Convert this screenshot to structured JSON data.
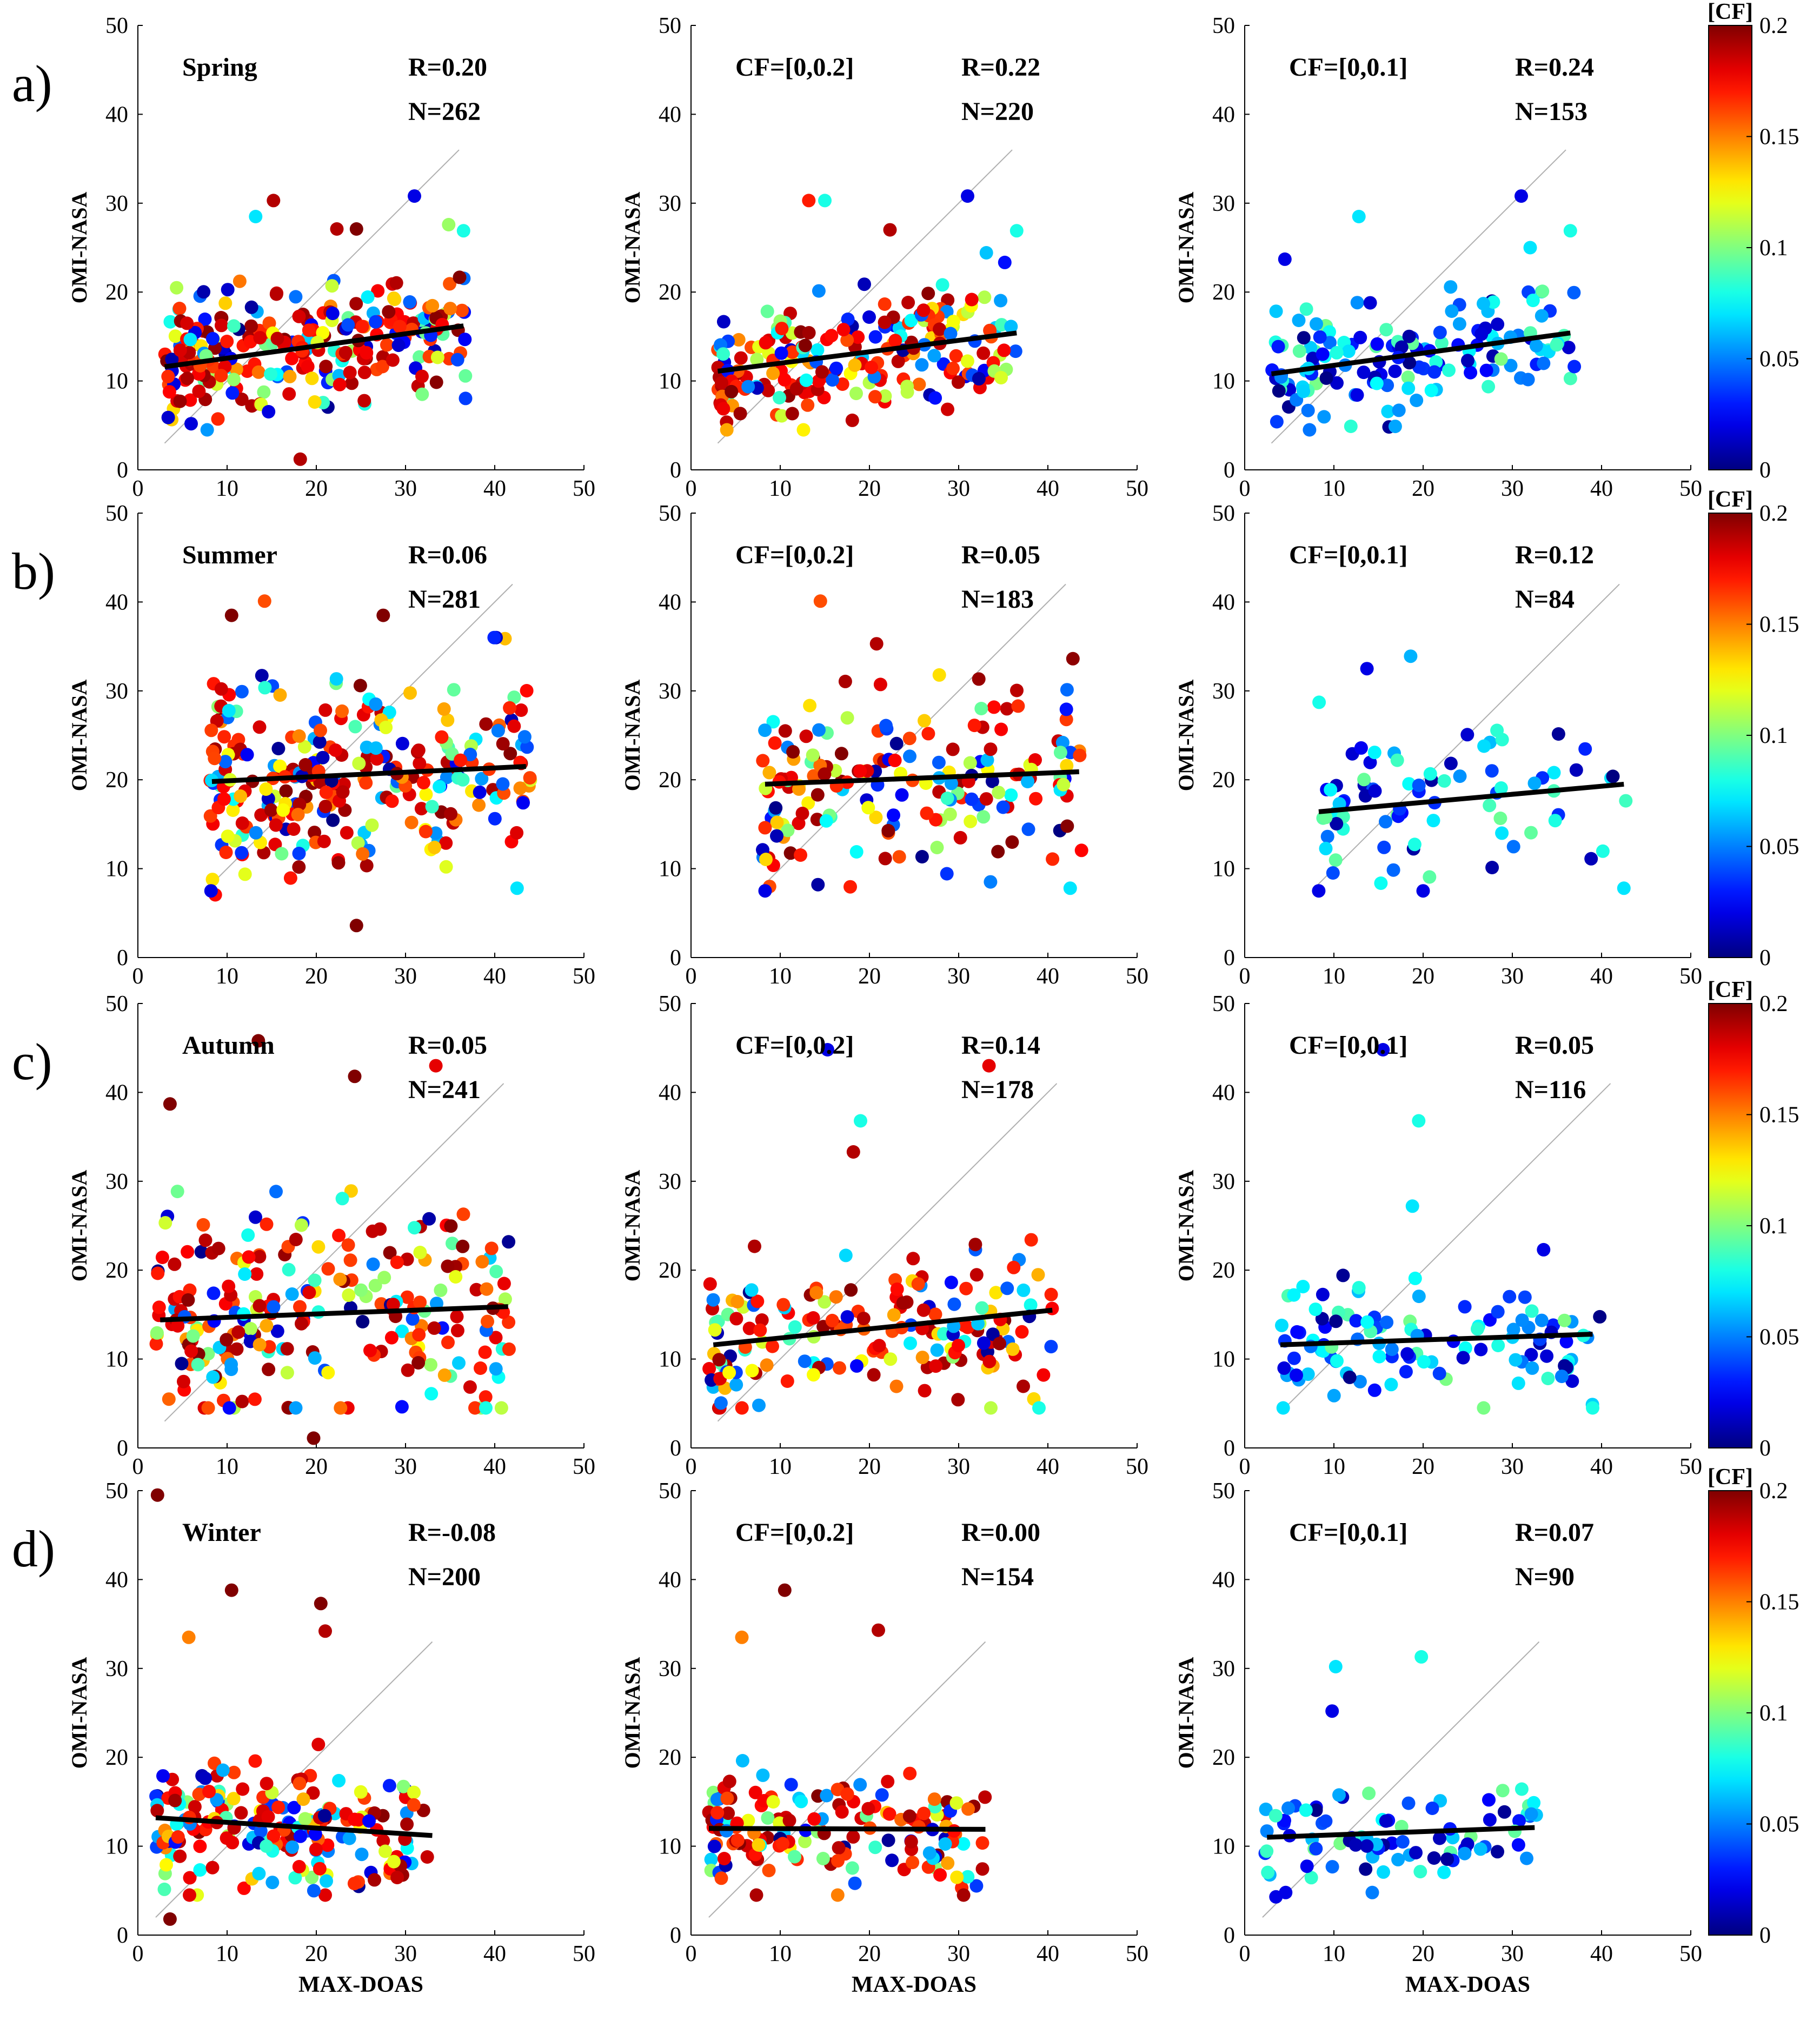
{
  "figure": {
    "x_axis_label": "MAX-DOAS",
    "y_axis_label": "OMI-NASA",
    "colorbar": {
      "label": "[CF]",
      "ticks": [
        "0",
        "0.05",
        "0.1",
        "0.15",
        "0.2"
      ],
      "tick_values": [
        0,
        0.05,
        0.1,
        0.15,
        0.2
      ],
      "range": [
        0,
        0.2
      ],
      "colormap": "jet"
    },
    "line_color": "#000000",
    "one_to_one_color": "#b0b0b0"
  },
  "chart_data": [
    {
      "type": "scatter",
      "row": 0,
      "col": 0,
      "row_label": "a)",
      "title": "Spring",
      "r_text": "R=0.20",
      "n_text": "N=262",
      "xlim": [
        0,
        50
      ],
      "ylim": [
        0,
        50
      ],
      "xticks": [
        "0",
        "10",
        "20",
        "30",
        "40",
        "50"
      ],
      "yticks": [
        "0",
        "10",
        "20",
        "30",
        "40",
        "50"
      ],
      "fit": {
        "x0": 3,
        "y0": 11.6,
        "x1": 36.5,
        "y1": 16.2
      },
      "one_to_one": [
        3,
        36
      ],
      "xlabel": "",
      "ylabel": "OMI-NASA",
      "seed": 11,
      "cf_max": 0.2,
      "n_points": 262,
      "dist": {
        "x": [
          3,
          37
        ],
        "ymean": 12,
        "yspread": 3.6,
        "outliers": [
          [
            15.2,
            30.3,
            0.19
          ],
          [
            13.2,
            28.5,
            0.07
          ],
          [
            18.2,
            1.2,
            0.19
          ],
          [
            31,
            30.8,
            0.02
          ],
          [
            36.5,
            26.9,
            0.08
          ],
          [
            22.3,
            27.1,
            0.19
          ],
          [
            24.5,
            27.1,
            0.2
          ]
        ]
      }
    },
    {
      "type": "scatter",
      "row": 0,
      "col": 1,
      "row_label": "",
      "title": "CF=[0,0.2]",
      "r_text": "R=0.22",
      "n_text": "N=220",
      "xlim": [
        0,
        50
      ],
      "ylim": [
        0,
        50
      ],
      "xticks": [
        "0",
        "10",
        "20",
        "30",
        "40",
        "50"
      ],
      "yticks": [
        "0",
        "10",
        "20",
        "30",
        "40",
        "50"
      ],
      "fit": {
        "x0": 3,
        "y0": 11.1,
        "x1": 36.5,
        "y1": 15.4
      },
      "one_to_one": [
        3,
        36
      ],
      "xlabel": "",
      "ylabel": "OMI-NASA",
      "seed": 12,
      "cf_max": 0.2,
      "n_points": 220,
      "dist": {
        "x": [
          3,
          37
        ],
        "ymean": 12,
        "yspread": 3.4,
        "outliers": [
          [
            13.2,
            30.3,
            0.17
          ],
          [
            15,
            30.3,
            0.08
          ],
          [
            31,
            30.8,
            0.02
          ],
          [
            36.5,
            26.9,
            0.08
          ],
          [
            22.3,
            27,
            0.19
          ]
        ]
      }
    },
    {
      "type": "scatter",
      "row": 0,
      "col": 2,
      "row_label": "",
      "title": "CF=[0,0.1]",
      "r_text": "R=0.24",
      "n_text": "N=153",
      "xlim": [
        0,
        50
      ],
      "ylim": [
        0,
        50
      ],
      "xticks": [
        "0",
        "10",
        "20",
        "30",
        "40",
        "50"
      ],
      "yticks": [
        "0",
        "10",
        "20",
        "30",
        "40",
        "50"
      ],
      "fit": {
        "x0": 3,
        "y0": 10.8,
        "x1": 36.5,
        "y1": 15.4
      },
      "one_to_one": [
        3,
        36
      ],
      "xlabel": "",
      "ylabel": "OMI-NASA",
      "seed": 13,
      "cf_max": 0.1,
      "n_points": 153,
      "dist": {
        "x": [
          3,
          37
        ],
        "ymean": 11.5,
        "yspread": 3.3,
        "outliers": [
          [
            12.8,
            28.5,
            0.07
          ],
          [
            31,
            30.8,
            0.02
          ],
          [
            36.5,
            26.9,
            0.08
          ],
          [
            32,
            25,
            0.07
          ],
          [
            4.5,
            23.7,
            0.02
          ]
        ]
      }
    },
    {
      "type": "scatter",
      "row": 1,
      "col": 0,
      "row_label": "b)",
      "title": "Summer",
      "r_text": "R=0.06",
      "n_text": "N=281",
      "xlim": [
        0,
        50
      ],
      "ylim": [
        0,
        50
      ],
      "xticks": [
        "0",
        "10",
        "20",
        "30",
        "40",
        "50"
      ],
      "yticks": [
        "0",
        "10",
        "20",
        "30",
        "40",
        "50"
      ],
      "fit": {
        "x0": 8.3,
        "y0": 19.8,
        "x1": 43.5,
        "y1": 21.5
      },
      "one_to_one": [
        8,
        42
      ],
      "xlabel": "",
      "ylabel": "OMI-NASA",
      "seed": 21,
      "cf_max": 0.2,
      "n_points": 281,
      "dist": {
        "x": [
          8,
          44
        ],
        "ymean": 21,
        "yspread": 5.5,
        "outliers": [
          [
            14.2,
            40.1,
            0.16
          ],
          [
            8.2,
            7.5,
            0.02
          ],
          [
            24.5,
            3.6,
            0.2
          ],
          [
            42.5,
            7.8,
            0.07
          ],
          [
            10.5,
            38.5,
            0.2
          ],
          [
            27.5,
            38.5,
            0.2
          ]
        ]
      }
    },
    {
      "type": "scatter",
      "row": 1,
      "col": 1,
      "row_label": "",
      "title": "CF=[0,0.2]",
      "r_text": "R=0.05",
      "n_text": "N=183",
      "xlim": [
        0,
        50
      ],
      "ylim": [
        0,
        50
      ],
      "xticks": [
        "0",
        "10",
        "20",
        "30",
        "40",
        "50"
      ],
      "yticks": [
        "0",
        "10",
        "20",
        "30",
        "40",
        "50"
      ],
      "fit": {
        "x0": 8.3,
        "y0": 19.5,
        "x1": 43.5,
        "y1": 20.9
      },
      "one_to_one": [
        8,
        42
      ],
      "xlabel": "",
      "ylabel": "OMI-NASA",
      "seed": 22,
      "cf_max": 0.2,
      "n_points": 183,
      "dist": {
        "x": [
          8,
          44
        ],
        "ymean": 20,
        "yspread": 5.2,
        "outliers": [
          [
            14.5,
            40.1,
            0.16
          ],
          [
            8.3,
            7.5,
            0.02
          ],
          [
            42.5,
            7.8,
            0.07
          ],
          [
            20.8,
            35.3,
            0.19
          ]
        ]
      }
    },
    {
      "type": "scatter",
      "row": 1,
      "col": 2,
      "row_label": "",
      "title": "CF=[0,0.1]",
      "r_text": "R=0.12",
      "n_text": "N=84",
      "xlim": [
        0,
        50
      ],
      "ylim": [
        0,
        50
      ],
      "xticks": [
        "0",
        "10",
        "20",
        "30",
        "40",
        "50"
      ],
      "yticks": [
        "0",
        "10",
        "20",
        "30",
        "40",
        "50"
      ],
      "fit": {
        "x0": 8.3,
        "y0": 16.4,
        "x1": 42.5,
        "y1": 19.5
      },
      "one_to_one": [
        8,
        42
      ],
      "xlabel": "",
      "ylabel": "OMI-NASA",
      "seed": 23,
      "cf_max": 0.1,
      "n_points": 84,
      "dist": {
        "x": [
          8,
          43
        ],
        "ymean": 18,
        "yspread": 4.8,
        "outliers": [
          [
            13.7,
            32.5,
            0.02
          ],
          [
            18.6,
            33.9,
            0.06
          ],
          [
            8.3,
            7.5,
            0.02
          ],
          [
            42.5,
            7.8,
            0.07
          ],
          [
            20,
            7.5,
            0.02
          ]
        ]
      }
    },
    {
      "type": "scatter",
      "row": 2,
      "col": 0,
      "row_label": "c)",
      "title": "Autumn",
      "r_text": "R=0.05",
      "n_text": "N=241",
      "xlim": [
        0,
        50
      ],
      "ylim": [
        0,
        50
      ],
      "xticks": [
        "0",
        "10",
        "20",
        "30",
        "40",
        "50"
      ],
      "yticks": [
        "0",
        "10",
        "20",
        "30",
        "40",
        "50"
      ],
      "fit": {
        "x0": 2.5,
        "y0": 14.4,
        "x1": 41.5,
        "y1": 15.9
      },
      "one_to_one": [
        3,
        41
      ],
      "xlabel": "",
      "ylabel": "OMI-NASA",
      "seed": 31,
      "cf_max": 0.2,
      "n_points": 241,
      "dist": {
        "x": [
          2,
          42
        ],
        "ymean": 14,
        "yspread": 5.8,
        "outliers": [
          [
            13.5,
            45.8,
            0.2
          ],
          [
            33.4,
            43,
            0.18
          ],
          [
            3.6,
            38.7,
            0.2
          ],
          [
            24.3,
            41.8,
            0.2
          ],
          [
            19.7,
            1.1,
            0.2
          ],
          [
            39,
            4.5,
            0.08
          ]
        ]
      }
    },
    {
      "type": "scatter",
      "row": 2,
      "col": 1,
      "row_label": "",
      "title": "CF=[0,0.2]",
      "r_text": "R=0.14",
      "n_text": "N=178",
      "xlim": [
        0,
        50
      ],
      "ylim": [
        0,
        50
      ],
      "xticks": [
        "0",
        "10",
        "20",
        "30",
        "40",
        "50"
      ],
      "yticks": [
        "0",
        "10",
        "20",
        "30",
        "40",
        "50"
      ],
      "fit": {
        "x0": 2.5,
        "y0": 11.6,
        "x1": 40.5,
        "y1": 15.5
      },
      "one_to_one": [
        3,
        41
      ],
      "xlabel": "",
      "ylabel": "OMI-NASA",
      "seed": 32,
      "cf_max": 0.2,
      "n_points": 178,
      "dist": {
        "x": [
          2,
          41
        ],
        "ymean": 12,
        "yspread": 4.2,
        "outliers": [
          [
            15.3,
            44.8,
            0.02
          ],
          [
            33.4,
            43,
            0.18
          ],
          [
            19,
            36.8,
            0.08
          ],
          [
            18.2,
            33.3,
            0.19
          ],
          [
            39,
            4.5,
            0.08
          ]
        ]
      }
    },
    {
      "type": "scatter",
      "row": 2,
      "col": 2,
      "row_label": "",
      "title": "CF=[0,0.1]",
      "r_text": "R=0.05",
      "n_text": "N=116",
      "xlim": [
        0,
        50
      ],
      "ylim": [
        0,
        50
      ],
      "xticks": [
        "0",
        "10",
        "20",
        "30",
        "40",
        "50"
      ],
      "yticks": [
        "0",
        "10",
        "20",
        "30",
        "40",
        "50"
      ],
      "fit": {
        "x0": 4,
        "y0": 11.6,
        "x1": 39,
        "y1": 12.8
      },
      "one_to_one": [
        4,
        41
      ],
      "xlabel": "",
      "ylabel": "OMI-NASA",
      "seed": 33,
      "cf_max": 0.1,
      "n_points": 116,
      "dist": {
        "x": [
          4,
          40
        ],
        "ymean": 11,
        "yspread": 3.2,
        "outliers": [
          [
            15.5,
            44.8,
            0.02
          ],
          [
            19.5,
            36.8,
            0.08
          ],
          [
            18.8,
            27.2,
            0.07
          ],
          [
            39,
            4.5,
            0.08
          ],
          [
            33.5,
            22.3,
            0.02
          ]
        ]
      }
    },
    {
      "type": "scatter",
      "row": 3,
      "col": 0,
      "row_label": "d)",
      "title": "Winter",
      "r_text": "R=-0.08",
      "n_text": "N=200",
      "xlim": [
        0,
        50
      ],
      "ylim": [
        0,
        50
      ],
      "xticks": [
        "0",
        "10",
        "20",
        "30",
        "40",
        "50"
      ],
      "yticks": [
        "0",
        "10",
        "20",
        "30",
        "40",
        "50"
      ],
      "fit": {
        "x0": 2,
        "y0": 13.2,
        "x1": 33,
        "y1": 11.2
      },
      "one_to_one": [
        2,
        33
      ],
      "xlabel": "MAX-DOAS",
      "ylabel": "OMI-NASA",
      "seed": 41,
      "cf_max": 0.2,
      "n_points": 200,
      "dist": {
        "x": [
          2,
          33
        ],
        "ymean": 11,
        "yspread": 3.6,
        "outliers": [
          [
            2.2,
            49.5,
            0.2
          ],
          [
            10.5,
            38.8,
            0.2
          ],
          [
            20.5,
            37.3,
            0.2
          ],
          [
            21,
            34.2,
            0.19
          ],
          [
            5.7,
            33.5,
            0.15
          ],
          [
            3.6,
            1.8,
            0.2
          ]
        ]
      }
    },
    {
      "type": "scatter",
      "row": 3,
      "col": 1,
      "row_label": "",
      "title": "CF=[0,0.2]",
      "r_text": "R=0.00",
      "n_text": "N=154",
      "xlim": [
        0,
        50
      ],
      "ylim": [
        0,
        50
      ],
      "xticks": [
        "0",
        "10",
        "20",
        "30",
        "40",
        "50"
      ],
      "yticks": [
        "0",
        "10",
        "20",
        "30",
        "40",
        "50"
      ],
      "fit": {
        "x0": 2,
        "y0": 12,
        "x1": 33,
        "y1": 11.9
      },
      "one_to_one": [
        2,
        33
      ],
      "xlabel": "MAX-DOAS",
      "ylabel": "OMI-NASA",
      "seed": 42,
      "cf_max": 0.2,
      "n_points": 154,
      "dist": {
        "x": [
          2,
          33
        ],
        "ymean": 11,
        "yspread": 3.2,
        "outliers": [
          [
            10.5,
            38.8,
            0.2
          ],
          [
            21,
            34.3,
            0.19
          ],
          [
            5.7,
            33.5,
            0.15
          ],
          [
            29.8,
            6.5,
            0.13
          ]
        ]
      }
    },
    {
      "type": "scatter",
      "row": 3,
      "col": 2,
      "row_label": "",
      "title": "CF=[0,0.1]",
      "r_text": "R=0.07",
      "n_text": "N=90",
      "xlim": [
        0,
        50
      ],
      "ylim": [
        0,
        50
      ],
      "xticks": [
        "0",
        "10",
        "20",
        "30",
        "40",
        "50"
      ],
      "yticks": [
        "0",
        "10",
        "20",
        "30",
        "40",
        "50"
      ],
      "fit": {
        "x0": 2.5,
        "y0": 11,
        "x1": 32.5,
        "y1": 12.1
      },
      "one_to_one": [
        2,
        33
      ],
      "xlabel": "MAX-DOAS",
      "ylabel": "OMI-NASA",
      "seed": 43,
      "cf_max": 0.1,
      "n_points": 90,
      "dist": {
        "x": [
          2,
          33
        ],
        "ymean": 10,
        "yspread": 2.6,
        "outliers": [
          [
            10.2,
            30.2,
            0.07
          ],
          [
            19.8,
            31.3,
            0.08
          ],
          [
            9.8,
            25.2,
            0.02
          ],
          [
            3.5,
            4.3,
            0.02
          ]
        ]
      }
    }
  ]
}
